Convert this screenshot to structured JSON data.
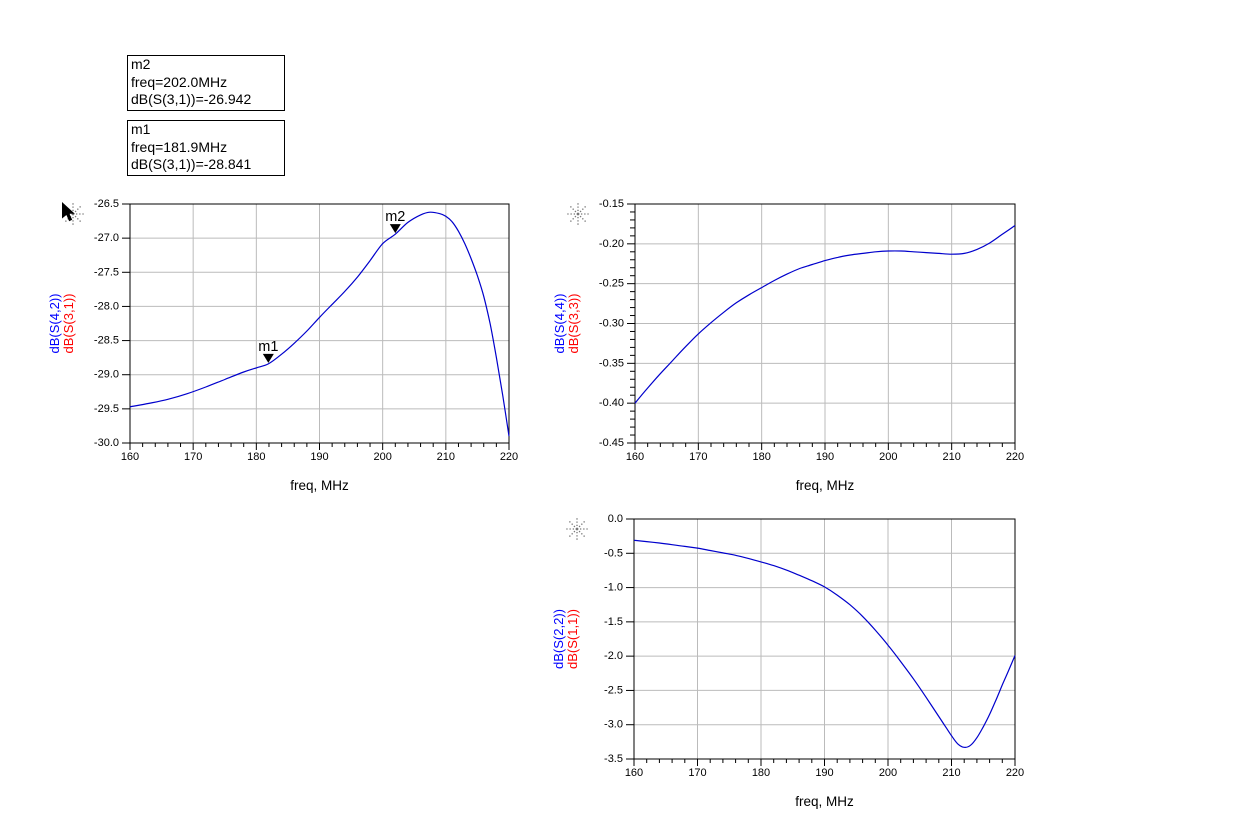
{
  "window": {
    "background": "#ffffff"
  },
  "colors": {
    "curve": "#0000cc",
    "grid": "#bbbbbb",
    "axis": "#000000",
    "text": "#000000",
    "ylabel_blue": "#0000ff",
    "ylabel_red": "#ff0000",
    "marker_fill": "#000000",
    "handle_gray": "#777777"
  },
  "marker_boxes": [
    {
      "id": "m2",
      "lines": [
        "m2",
        "freq=202.0MHz",
        "dB(S(3,1))=-26.942"
      ]
    },
    {
      "id": "m1",
      "lines": [
        "m1",
        "freq=181.9MHz",
        "dB(S(3,1))=-28.841"
      ]
    }
  ],
  "chart_data": [
    {
      "id": "s42-s31",
      "type": "line",
      "title": "",
      "xlabel": "freq, MHz",
      "ylabel_blue": "dB(S(4,2))",
      "ylabel_red": "dB(S(3,1))",
      "xlim": [
        160,
        220
      ],
      "ylim": [
        -30.0,
        -26.5
      ],
      "xstep": 10,
      "xminor": 2,
      "ystep": 0.5,
      "yminor": null,
      "grid": true,
      "xticks": [
        "160",
        "170",
        "180",
        "190",
        "200",
        "210",
        "220"
      ],
      "yticks": [
        "-26.5",
        "-27.0",
        "-27.5",
        "-28.0",
        "-28.5",
        "-29.0",
        "-29.5",
        "-30.0"
      ],
      "x": [
        160,
        163,
        166,
        169,
        172,
        175,
        178,
        180,
        181.9,
        184,
        186,
        188,
        190,
        192,
        194,
        196,
        198,
        200,
        202,
        204,
        206,
        207.5,
        209,
        210,
        211,
        212,
        213,
        214,
        215,
        216,
        217,
        218,
        219,
        220
      ],
      "y": [
        -29.47,
        -29.42,
        -29.36,
        -29.28,
        -29.18,
        -29.07,
        -28.96,
        -28.9,
        -28.841,
        -28.7,
        -28.54,
        -28.36,
        -28.16,
        -27.97,
        -27.78,
        -27.57,
        -27.33,
        -27.08,
        -26.942,
        -26.77,
        -26.66,
        -26.62,
        -26.64,
        -26.68,
        -26.76,
        -26.9,
        -27.08,
        -27.3,
        -27.55,
        -27.85,
        -28.25,
        -28.75,
        -29.3,
        -29.9
      ],
      "markers": [
        {
          "label": "m1",
          "x": 181.9,
          "y": -28.841
        },
        {
          "label": "m2",
          "x": 202.0,
          "y": -26.942
        }
      ],
      "cursor": true
    },
    {
      "id": "s44-s33",
      "type": "line",
      "title": "",
      "xlabel": "freq, MHz",
      "ylabel_blue": "dB(S(4,4))",
      "ylabel_red": "dB(S(3,3))",
      "xlim": [
        160,
        220
      ],
      "ylim": [
        -0.45,
        -0.15
      ],
      "xstep": 10,
      "xminor": 2,
      "ystep": 0.05,
      "yminor": 0.01,
      "grid": true,
      "xticks": [
        "160",
        "170",
        "180",
        "190",
        "200",
        "210",
        "220"
      ],
      "yticks": [
        "-0.15",
        "-0.20",
        "-0.25",
        "-0.30",
        "-0.35",
        "-0.40",
        "-0.45"
      ],
      "x": [
        160,
        162,
        164,
        166,
        168,
        170,
        172,
        174,
        176,
        178,
        180,
        182,
        184,
        186,
        188,
        190,
        192,
        194,
        196,
        198,
        200,
        202,
        204,
        206,
        208,
        210,
        212,
        214,
        216,
        218,
        220
      ],
      "y": [
        -0.4,
        -0.381,
        -0.363,
        -0.346,
        -0.329,
        -0.313,
        -0.299,
        -0.286,
        -0.274,
        -0.264,
        -0.255,
        -0.246,
        -0.238,
        -0.231,
        -0.226,
        -0.221,
        -0.217,
        -0.214,
        -0.212,
        -0.21,
        -0.209,
        -0.209,
        -0.21,
        -0.211,
        -0.212,
        -0.213,
        -0.212,
        -0.207,
        -0.199,
        -0.188,
        -0.177
      ],
      "markers": [],
      "cursor": false
    },
    {
      "id": "s22-s11",
      "type": "line",
      "title": "",
      "xlabel": "freq, MHz",
      "ylabel_blue": "dB(S(2,2))",
      "ylabel_red": "dB(S(1,1))",
      "xlim": [
        160,
        220
      ],
      "ylim": [
        -3.5,
        0.0
      ],
      "xstep": 10,
      "xminor": 2,
      "ystep": 0.5,
      "yminor": null,
      "grid": true,
      "xticks": [
        "160",
        "170",
        "180",
        "190",
        "200",
        "210",
        "220"
      ],
      "yticks": [
        "0.0",
        "-0.5",
        "-1.0",
        "-1.5",
        "-2.0",
        "-2.5",
        "-3.0",
        "-3.5"
      ],
      "x": [
        160,
        162,
        164,
        166,
        168,
        170,
        172,
        174,
        176,
        178,
        180,
        182,
        184,
        186,
        188,
        190,
        192,
        194,
        196,
        198,
        200,
        202,
        204,
        206,
        208,
        209,
        210,
        211,
        212,
        213,
        214,
        215,
        216,
        217,
        218,
        219,
        220
      ],
      "y": [
        -0.31,
        -0.33,
        -0.35,
        -0.375,
        -0.4,
        -0.425,
        -0.46,
        -0.495,
        -0.53,
        -0.575,
        -0.625,
        -0.68,
        -0.745,
        -0.82,
        -0.9,
        -0.99,
        -1.11,
        -1.25,
        -1.42,
        -1.62,
        -1.84,
        -2.08,
        -2.33,
        -2.6,
        -2.88,
        -3.02,
        -3.16,
        -3.28,
        -3.33,
        -3.3,
        -3.19,
        -3.03,
        -2.85,
        -2.64,
        -2.42,
        -2.21,
        -1.99
      ],
      "markers": [],
      "cursor": false
    }
  ]
}
